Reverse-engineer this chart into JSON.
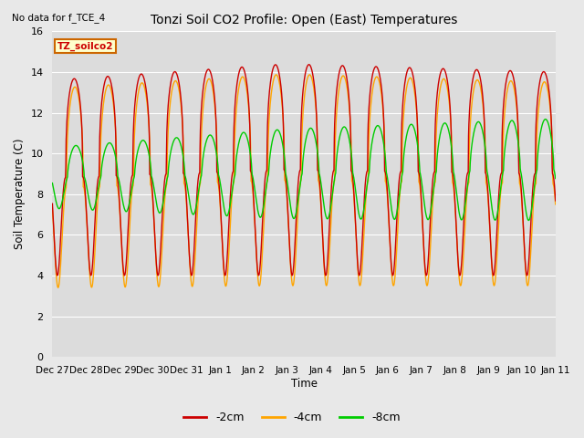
{
  "title": "Tonzi Soil CO2 Profile: Open (East) Temperatures",
  "subtitle": "No data for f_TCE_4",
  "ylabel": "Soil Temperature (C)",
  "xlabel": "Time",
  "box_label": "TZ_soilco2",
  "ylim": [
    0,
    16
  ],
  "yticks": [
    0,
    2,
    4,
    6,
    8,
    10,
    12,
    14,
    16
  ],
  "xtick_labels": [
    "Dec 27",
    "Dec 28",
    "Dec 29",
    "Dec 30",
    "Dec 31",
    "Jan 1",
    "Jan 2",
    "Jan 3",
    "Jan 4",
    "Jan 5",
    "Jan 6",
    "Jan 7",
    "Jan 8",
    "Jan 9",
    "Jan 10",
    "Jan 11"
  ],
  "colors": {
    "-2cm": "#cc0000",
    "-4cm": "#ffa500",
    "-8cm": "#00cc00"
  },
  "legend_labels": [
    "-2cm",
    "-4cm",
    "-8cm"
  ],
  "fig_bg": "#e8e8e8",
  "plot_bg": "#dcdcdc",
  "grid_color": "#ffffff",
  "figsize": [
    6.4,
    4.8
  ],
  "dpi": 100
}
